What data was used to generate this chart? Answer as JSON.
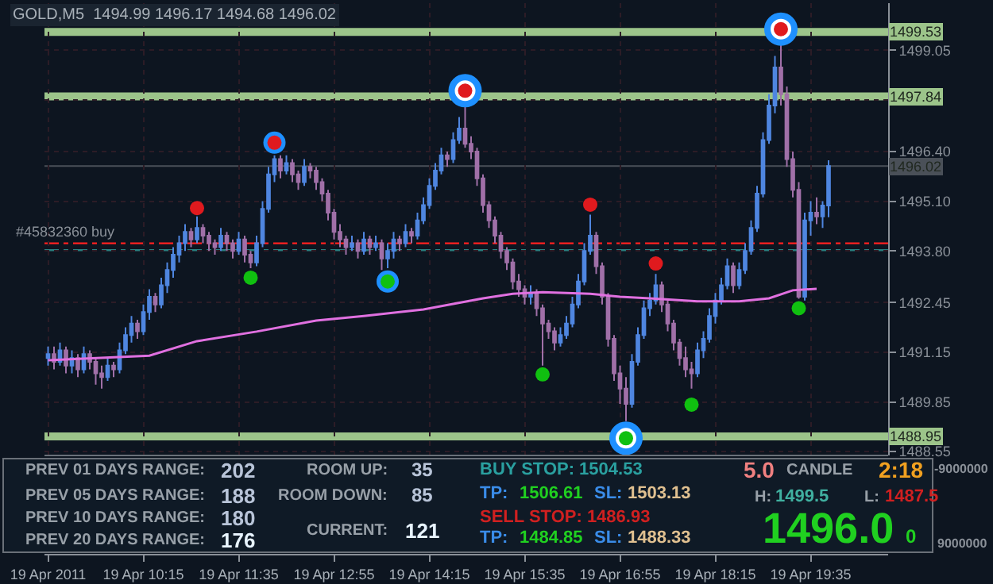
{
  "chart_data": {
    "type": "candlestick",
    "title": "GOLD,M5  1494.99 1496.17 1494.68 1496.02",
    "x": [
      "2011-04-19T08:55",
      "2011-04-19T09:00",
      "2011-04-19T09:05",
      "2011-04-19T09:10",
      "2011-04-19T09:15",
      "2011-04-19T09:20",
      "2011-04-19T09:25",
      "2011-04-19T09:30",
      "2011-04-19T09:35",
      "2011-04-19T09:40",
      "2011-04-19T09:45",
      "2011-04-19T09:50",
      "2011-04-19T09:55",
      "2011-04-19T10:00",
      "2011-04-19T10:05",
      "2011-04-19T10:10",
      "2011-04-19T10:15",
      "2011-04-19T10:20",
      "2011-04-19T10:25",
      "2011-04-19T10:30",
      "2011-04-19T10:35",
      "2011-04-19T10:40",
      "2011-04-19T10:45",
      "2011-04-19T10:50",
      "2011-04-19T10:55",
      "2011-04-19T11:00",
      "2011-04-19T11:05",
      "2011-04-19T11:10",
      "2011-04-19T11:15",
      "2011-04-19T11:20",
      "2011-04-19T11:25",
      "2011-04-19T11:30",
      "2011-04-19T11:35",
      "2011-04-19T11:40",
      "2011-04-19T11:45",
      "2011-04-19T11:50",
      "2011-04-19T11:55",
      "2011-04-19T12:00",
      "2011-04-19T12:05",
      "2011-04-19T12:10",
      "2011-04-19T12:15",
      "2011-04-19T12:20",
      "2011-04-19T12:25",
      "2011-04-19T12:30",
      "2011-04-19T12:35",
      "2011-04-19T12:40",
      "2011-04-19T12:45",
      "2011-04-19T12:50",
      "2011-04-19T12:55",
      "2011-04-19T13:00",
      "2011-04-19T13:05",
      "2011-04-19T13:10",
      "2011-04-19T13:15",
      "2011-04-19T13:20",
      "2011-04-19T13:25",
      "2011-04-19T13:30",
      "2011-04-19T13:35",
      "2011-04-19T13:40",
      "2011-04-19T13:45",
      "2011-04-19T13:50",
      "2011-04-19T13:55",
      "2011-04-19T14:00",
      "2011-04-19T14:05",
      "2011-04-19T14:10",
      "2011-04-19T14:15",
      "2011-04-19T14:20",
      "2011-04-19T14:25",
      "2011-04-19T14:30",
      "2011-04-19T14:35",
      "2011-04-19T14:40",
      "2011-04-19T14:45",
      "2011-04-19T14:50",
      "2011-04-19T14:55",
      "2011-04-19T15:00",
      "2011-04-19T15:05",
      "2011-04-19T15:10",
      "2011-04-19T15:15",
      "2011-04-19T15:20",
      "2011-04-19T15:25",
      "2011-04-19T15:30",
      "2011-04-19T15:35",
      "2011-04-19T15:40",
      "2011-04-19T15:45",
      "2011-04-19T15:50",
      "2011-04-19T15:55",
      "2011-04-19T16:00",
      "2011-04-19T16:05",
      "2011-04-19T16:10",
      "2011-04-19T16:15",
      "2011-04-19T16:20",
      "2011-04-19T16:25",
      "2011-04-19T16:30",
      "2011-04-19T16:35",
      "2011-04-19T16:40",
      "2011-04-19T16:45",
      "2011-04-19T16:50",
      "2011-04-19T16:55",
      "2011-04-19T17:00",
      "2011-04-19T17:05",
      "2011-04-19T17:10",
      "2011-04-19T17:15",
      "2011-04-19T17:20",
      "2011-04-19T17:25",
      "2011-04-19T17:30",
      "2011-04-19T17:35",
      "2011-04-19T17:40",
      "2011-04-19T17:45",
      "2011-04-19T17:50",
      "2011-04-19T17:55",
      "2011-04-19T18:00",
      "2011-04-19T18:05",
      "2011-04-19T18:10",
      "2011-04-19T18:15",
      "2011-04-19T18:20",
      "2011-04-19T18:25",
      "2011-04-19T18:30",
      "2011-04-19T18:35",
      "2011-04-19T18:40",
      "2011-04-19T18:45",
      "2011-04-19T18:50",
      "2011-04-19T18:55",
      "2011-04-19T19:00",
      "2011-04-19T19:05",
      "2011-04-19T19:10",
      "2011-04-19T19:15",
      "2011-04-19T19:20",
      "2011-04-19T19:25",
      "2011-04-19T19:30",
      "2011-04-19T19:35",
      "2011-04-19T19:40",
      "2011-04-19T19:45",
      "2011-04-19T19:50"
    ],
    "ohlc": [
      [
        1491.0,
        1491.3,
        1490.8,
        1491.1
      ],
      [
        1491.1,
        1491.3,
        1490.7,
        1490.9
      ],
      [
        1490.9,
        1491.4,
        1490.8,
        1491.2
      ],
      [
        1491.2,
        1491.3,
        1490.6,
        1490.8
      ],
      [
        1490.8,
        1491.2,
        1490.6,
        1491.0
      ],
      [
        1491.0,
        1491.1,
        1490.5,
        1490.7
      ],
      [
        1490.7,
        1491.3,
        1490.6,
        1491.1
      ],
      [
        1491.1,
        1491.2,
        1490.7,
        1490.9
      ],
      [
        1490.9,
        1491.0,
        1490.3,
        1490.6
      ],
      [
        1490.6,
        1490.8,
        1490.2,
        1490.5
      ],
      [
        1490.5,
        1491.0,
        1490.4,
        1490.8
      ],
      [
        1490.8,
        1490.9,
        1490.5,
        1490.7
      ],
      [
        1490.7,
        1491.4,
        1490.6,
        1491.2
      ],
      [
        1491.2,
        1491.8,
        1491.1,
        1491.6
      ],
      [
        1491.6,
        1492.1,
        1491.4,
        1491.9
      ],
      [
        1491.9,
        1492.0,
        1491.5,
        1491.7
      ],
      [
        1491.7,
        1492.4,
        1491.6,
        1492.2
      ],
      [
        1492.2,
        1492.8,
        1492.0,
        1492.6
      ],
      [
        1492.6,
        1492.7,
        1492.2,
        1492.4
      ],
      [
        1492.4,
        1493.1,
        1492.3,
        1492.9
      ],
      [
        1492.9,
        1493.5,
        1492.7,
        1493.3
      ],
      [
        1493.3,
        1493.9,
        1493.1,
        1493.7
      ],
      [
        1493.7,
        1494.2,
        1493.5,
        1494.0
      ],
      [
        1494.0,
        1494.5,
        1493.8,
        1494.3
      ],
      [
        1494.3,
        1494.4,
        1493.9,
        1494.1
      ],
      [
        1494.1,
        1494.7,
        1494.0,
        1494.4
      ],
      [
        1494.4,
        1494.5,
        1494.0,
        1494.2
      ],
      [
        1494.2,
        1494.3,
        1493.8,
        1494.0
      ],
      [
        1494.0,
        1494.1,
        1493.7,
        1493.9
      ],
      [
        1493.9,
        1494.4,
        1493.8,
        1494.2
      ],
      [
        1494.2,
        1494.3,
        1493.8,
        1494.0
      ],
      [
        1494.0,
        1494.1,
        1493.6,
        1493.8
      ],
      [
        1493.8,
        1494.3,
        1493.7,
        1494.1
      ],
      [
        1494.1,
        1494.2,
        1493.5,
        1493.7
      ],
      [
        1493.7,
        1493.8,
        1493.35,
        1493.5
      ],
      [
        1493.5,
        1494.2,
        1493.4,
        1494.0
      ],
      [
        1494.0,
        1495.1,
        1493.9,
        1494.9
      ],
      [
        1494.9,
        1496.0,
        1494.8,
        1495.8
      ],
      [
        1495.8,
        1496.3,
        1495.6,
        1496.2
      ],
      [
        1496.2,
        1496.3,
        1495.7,
        1495.9
      ],
      [
        1495.9,
        1496.3,
        1495.8,
        1496.1
      ],
      [
        1496.1,
        1496.2,
        1495.6,
        1495.8
      ],
      [
        1495.8,
        1495.9,
        1495.4,
        1495.6
      ],
      [
        1495.6,
        1496.2,
        1495.5,
        1496.0
      ],
      [
        1496.0,
        1496.1,
        1495.7,
        1495.9
      ],
      [
        1495.9,
        1496.0,
        1495.4,
        1495.6
      ],
      [
        1495.6,
        1495.7,
        1495.1,
        1495.3
      ],
      [
        1495.3,
        1495.4,
        1494.6,
        1494.8
      ],
      [
        1494.8,
        1494.9,
        1494.1,
        1494.3
      ],
      [
        1494.3,
        1494.5,
        1493.9,
        1494.1
      ],
      [
        1494.1,
        1494.2,
        1493.7,
        1493.9
      ],
      [
        1493.9,
        1494.2,
        1493.8,
        1494.0
      ],
      [
        1494.0,
        1494.1,
        1493.6,
        1493.8
      ],
      [
        1493.8,
        1494.3,
        1493.7,
        1494.1
      ],
      [
        1494.1,
        1494.2,
        1493.7,
        1493.9
      ],
      [
        1493.9,
        1494.2,
        1493.8,
        1494.0
      ],
      [
        1494.0,
        1494.1,
        1493.3,
        1493.6
      ],
      [
        1493.6,
        1494.0,
        1493.35,
        1493.8
      ],
      [
        1493.8,
        1494.3,
        1493.6,
        1494.1
      ],
      [
        1494.1,
        1494.2,
        1493.8,
        1494.0
      ],
      [
        1494.0,
        1494.5,
        1493.9,
        1494.3
      ],
      [
        1494.3,
        1494.4,
        1494.0,
        1494.2
      ],
      [
        1494.2,
        1494.8,
        1494.1,
        1494.6
      ],
      [
        1494.6,
        1495.2,
        1494.5,
        1495.0
      ],
      [
        1495.0,
        1495.7,
        1494.9,
        1495.5
      ],
      [
        1495.5,
        1496.1,
        1495.4,
        1495.9
      ],
      [
        1495.9,
        1496.5,
        1495.8,
        1496.3
      ],
      [
        1496.3,
        1496.4,
        1496.0,
        1496.2
      ],
      [
        1496.2,
        1496.9,
        1496.1,
        1496.7
      ],
      [
        1496.7,
        1497.3,
        1496.6,
        1497.0
      ],
      [
        1497.0,
        1497.6,
        1496.5,
        1496.6
      ],
      [
        1496.6,
        1496.8,
        1496.2,
        1496.4
      ],
      [
        1496.4,
        1496.5,
        1495.5,
        1495.7
      ],
      [
        1495.7,
        1495.8,
        1494.8,
        1495.0
      ],
      [
        1495.0,
        1495.1,
        1494.4,
        1494.6
      ],
      [
        1494.6,
        1494.7,
        1494.0,
        1494.2
      ],
      [
        1494.2,
        1494.3,
        1493.6,
        1493.8
      ],
      [
        1493.8,
        1493.9,
        1493.3,
        1493.5
      ],
      [
        1493.5,
        1493.6,
        1492.8,
        1493.0
      ],
      [
        1493.0,
        1493.2,
        1492.6,
        1492.8
      ],
      [
        1492.8,
        1492.9,
        1492.4,
        1492.6
      ],
      [
        1492.6,
        1492.9,
        1492.4,
        1492.7
      ],
      [
        1492.7,
        1492.8,
        1492.1,
        1492.3
      ],
      [
        1492.3,
        1492.4,
        1490.8,
        1491.9
      ],
      [
        1491.9,
        1492.0,
        1491.5,
        1491.7
      ],
      [
        1491.7,
        1491.8,
        1491.2,
        1491.4
      ],
      [
        1491.4,
        1491.8,
        1491.3,
        1491.6
      ],
      [
        1491.6,
        1492.1,
        1491.5,
        1491.9
      ],
      [
        1491.9,
        1492.6,
        1491.8,
        1492.4
      ],
      [
        1492.4,
        1493.2,
        1492.3,
        1493.0
      ],
      [
        1493.0,
        1494.0,
        1492.9,
        1493.8
      ],
      [
        1493.8,
        1494.75,
        1493.7,
        1494.2
      ],
      [
        1494.2,
        1494.3,
        1493.2,
        1493.4
      ],
      [
        1493.4,
        1493.5,
        1492.4,
        1492.6
      ],
      [
        1492.6,
        1492.7,
        1491.3,
        1491.5
      ],
      [
        1491.5,
        1491.6,
        1490.4,
        1490.6
      ],
      [
        1490.6,
        1490.8,
        1489.8,
        1490.2
      ],
      [
        1490.2,
        1490.5,
        1489.35,
        1489.8
      ],
      [
        1489.8,
        1491.1,
        1489.7,
        1490.9
      ],
      [
        1490.9,
        1491.8,
        1490.8,
        1491.6
      ],
      [
        1491.6,
        1492.5,
        1491.5,
        1492.3
      ],
      [
        1492.3,
        1492.7,
        1492.1,
        1492.5
      ],
      [
        1492.5,
        1493.2,
        1492.4,
        1492.9
      ],
      [
        1492.9,
        1493.0,
        1492.2,
        1492.4
      ],
      [
        1492.4,
        1492.5,
        1491.7,
        1491.9
      ],
      [
        1491.9,
        1492.0,
        1491.2,
        1491.4
      ],
      [
        1491.4,
        1491.5,
        1490.8,
        1491.0
      ],
      [
        1491.0,
        1491.3,
        1490.5,
        1490.7
      ],
      [
        1490.7,
        1490.9,
        1490.2,
        1490.6
      ],
      [
        1490.6,
        1491.4,
        1490.5,
        1491.2
      ],
      [
        1491.2,
        1491.7,
        1491.0,
        1491.5
      ],
      [
        1491.5,
        1492.3,
        1491.4,
        1492.1
      ],
      [
        1492.1,
        1492.7,
        1491.9,
        1492.5
      ],
      [
        1492.5,
        1493.1,
        1492.4,
        1492.9
      ],
      [
        1492.9,
        1493.6,
        1492.8,
        1493.4
      ],
      [
        1493.4,
        1493.5,
        1492.7,
        1492.9
      ],
      [
        1492.9,
        1493.5,
        1492.8,
        1493.3
      ],
      [
        1493.3,
        1494.0,
        1493.2,
        1493.8
      ],
      [
        1493.8,
        1494.6,
        1493.7,
        1494.4
      ],
      [
        1494.4,
        1495.5,
        1494.3,
        1495.3
      ],
      [
        1495.3,
        1496.9,
        1495.2,
        1496.7
      ],
      [
        1496.7,
        1497.9,
        1496.6,
        1497.6
      ],
      [
        1497.6,
        1498.9,
        1497.4,
        1498.6
      ],
      [
        1498.6,
        1499.2,
        1497.6,
        1497.9
      ],
      [
        1497.9,
        1498.1,
        1496.0,
        1496.2
      ],
      [
        1496.2,
        1496.4,
        1495.2,
        1495.4
      ],
      [
        1495.4,
        1495.6,
        1492.55,
        1492.6
      ],
      [
        1492.6,
        1494.8,
        1492.5,
        1494.6
      ],
      [
        1494.6,
        1495.1,
        1494.2,
        1494.8
      ],
      [
        1494.8,
        1495.2,
        1494.5,
        1494.7
      ],
      [
        1494.7,
        1495.1,
        1494.4,
        1494.99
      ],
      [
        1494.99,
        1496.17,
        1494.68,
        1496.02
      ]
    ],
    "series": [
      {
        "type": "line",
        "color": "#e070e0",
        "x": [
          "2011-04-19T08:55",
          "2011-04-19T10:20",
          "2011-04-19T11:00",
          "2011-04-19T11:50",
          "2011-04-19T12:40",
          "2011-04-19T13:20",
          "2011-04-19T14:10",
          "2011-04-19T15:00",
          "2011-04-19T15:25",
          "2011-04-19T15:50",
          "2011-04-19T16:30",
          "2011-04-19T16:55",
          "2011-04-19T17:20",
          "2011-04-19T18:00",
          "2011-04-19T18:35",
          "2011-04-19T19:00",
          "2011-04-19T19:20",
          "2011-04-19T19:40"
        ],
        "values": [
          1490.94,
          1491.06,
          1491.44,
          1491.69,
          1491.98,
          1492.1,
          1492.27,
          1492.56,
          1492.68,
          1492.72,
          1492.68,
          1492.6,
          1492.56,
          1492.48,
          1492.48,
          1492.56,
          1492.77,
          1492.81
        ]
      },
      {
        "type": "scatter",
        "color": "#ffffff",
        "marker": "circle",
        "x": [
          "2011-04-19T14:45",
          "2011-04-19T17:00",
          "2011-04-19T19:10"
        ],
        "values": [
          1497.99,
          1488.9,
          1499.6
        ]
      },
      {
        "type": "scatter",
        "color": "#1e90ff",
        "marker": "circle",
        "x": [
          "2011-04-19T12:05",
          "2011-04-19T13:40"
        ],
        "values": [
          1496.63,
          1493.0
        ]
      },
      {
        "type": "scatter",
        "color": "#e01a1e",
        "marker": "circle",
        "x": [
          "2011-04-19T11:00",
          "2011-04-19T12:05",
          "2011-04-19T14:45",
          "2011-04-19T16:30",
          "2011-04-19T17:25",
          "2011-04-19T19:10"
        ],
        "values": [
          1494.92,
          1496.63,
          1497.99,
          1495.01,
          1493.47,
          1499.6
        ]
      },
      {
        "type": "scatter",
        "color": "#10c010",
        "marker": "circle",
        "x": [
          "2011-04-19T11:45",
          "2011-04-19T13:40",
          "2011-04-19T15:50",
          "2011-04-19T17:00",
          "2011-04-19T17:55",
          "2011-04-19T19:25"
        ],
        "values": [
          1493.1,
          1493.0,
          1490.57,
          1488.9,
          1489.78,
          1492.3
        ]
      }
    ],
    "ylim": [
      1488.45,
      1500.28
    ],
    "yticks": [
      1488.55,
      1489.85,
      1491.15,
      1492.45,
      {
        "value": 1493.8,
        "label": "1493.80"
      },
      {
        "value": 1495.1,
        "label": "1495.10"
      },
      {
        "value": 1496.4,
        "label": "1496.40"
      },
      {
        "value": 1497.75,
        "label": null
      },
      1499.05
    ],
    "xlim": [
      "2011-04-19T08:52",
      "2011-04-19T20:40"
    ],
    "xticks": [
      {
        "value": "2011-04-19T08:55",
        "label": "19 Apr 2011"
      },
      {
        "value": "2011-04-19T10:15",
        "label": "19 Apr 10:15"
      },
      {
        "value": "2011-04-19T11:35",
        "label": "19 Apr 11:35"
      },
      {
        "value": "2011-04-19T12:55",
        "label": "19 Apr 12:55"
      },
      {
        "value": "2011-04-19T14:15",
        "label": "19 Apr 14:15"
      },
      {
        "value": "2011-04-19T15:35",
        "label": "19 Apr 15:35"
      },
      {
        "value": "2011-04-19T16:55",
        "label": "19 Apr 16:55"
      },
      {
        "value": "2011-04-19T18:15",
        "label": "19 Apr 18:15"
      },
      {
        "value": "2011-04-19T19:35",
        "label": "19 Apr 19:35"
      }
    ],
    "ref_lines": [
      {
        "axis": "y",
        "value": 1499.53,
        "label": "1499.53",
        "color": "#9cc48a"
      },
      {
        "axis": "y",
        "value": 1497.84,
        "label": "1497.84",
        "color": "#9cc48a"
      },
      {
        "axis": "y",
        "value": 1488.95,
        "label": "1488.95",
        "color": "#9cc48a"
      },
      {
        "axis": "y",
        "value": 1496.02,
        "label": "1496.02",
        "color": "#4a5058"
      },
      {
        "axis": "y",
        "value": 1494.0,
        "label": "#45832360 buy",
        "color": "#ff2020",
        "line_style": "dashed"
      },
      {
        "axis": "y",
        "value": 1493.82,
        "color": "#2a8080",
        "line_style": "dashed"
      }
    ],
    "grid": true,
    "annotations": [
      "PREV 01 DAYS RANGE:",
      "202",
      "PREV 05 DAYS RANGE:",
      "188",
      "PREV 10 DAYS RANGE:",
      "180",
      "PREV 20 DAYS RANGE:",
      "176",
      "ROOM UP:",
      "35",
      "ROOM DOWN:",
      "85",
      "CURRENT:",
      "121",
      "BUY STOP: 1504.53",
      "TP:",
      "1506.61",
      "SL:",
      "1503.13",
      "SELL STOP: 1486.93",
      "TP:",
      "1484.85",
      "SL:",
      "1488.33",
      "5.0",
      "CANDLE",
      "2:18",
      "H:",
      "1499.5",
      "L:",
      "1487.5",
      "1496.0",
      "0",
      "-9000000",
      "9000000"
    ]
  }
}
